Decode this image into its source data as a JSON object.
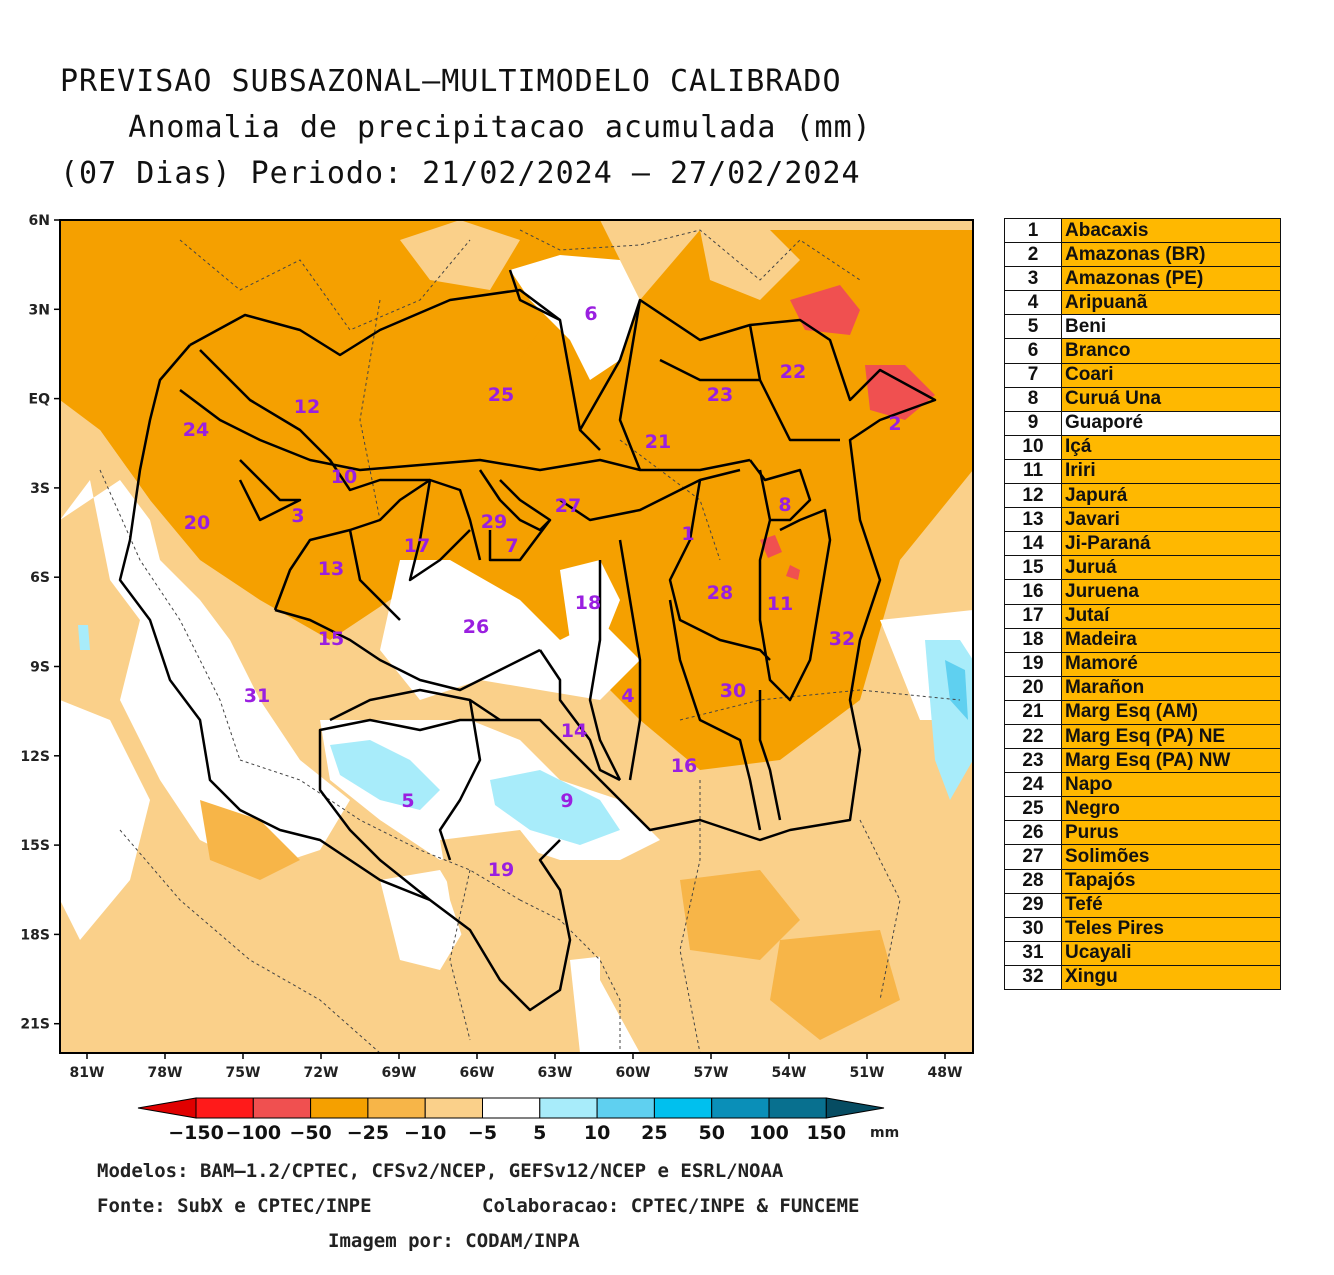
{
  "title": {
    "line1": "PREVISAO SUBSAZONAL—MULTIMODELO CALIBRADO",
    "line2": "Anomalia de precipitacao acumulada (mm)",
    "line3": "(07 Dias) Periodo: 21/02/2024 — 27/02/2024"
  },
  "axes": {
    "y_ticks": [
      "6N",
      "3N",
      "EQ",
      "3S",
      "6S",
      "9S",
      "12S",
      "15S",
      "18S",
      "21S"
    ],
    "x_ticks": [
      "81W",
      "78W",
      "75W",
      "72W",
      "69W",
      "66W",
      "63W",
      "60W",
      "57W",
      "54W",
      "51W",
      "48W"
    ]
  },
  "basin_labels": [
    "6",
    "22",
    "2",
    "23",
    "25",
    "12",
    "24",
    "21",
    "10",
    "3",
    "27",
    "8",
    "20",
    "29",
    "1",
    "7",
    "17",
    "13",
    "28",
    "11",
    "18",
    "32",
    "26",
    "15",
    "4",
    "30",
    "31",
    "14",
    "16",
    "5",
    "9",
    "19"
  ],
  "legend": [
    {
      "num": "1",
      "name": "Abacaxis"
    },
    {
      "num": "2",
      "name": "Amazonas (BR)"
    },
    {
      "num": "3",
      "name": "Amazonas (PE)"
    },
    {
      "num": "4",
      "name": "Aripuanã"
    },
    {
      "num": "5",
      "name": "Beni"
    },
    {
      "num": "6",
      "name": "Branco"
    },
    {
      "num": "7",
      "name": "Coari"
    },
    {
      "num": "8",
      "name": "Curuá Una"
    },
    {
      "num": "9",
      "name": "Guaporé"
    },
    {
      "num": "10",
      "name": "Içá"
    },
    {
      "num": "11",
      "name": "Iriri"
    },
    {
      "num": "12",
      "name": "Japurá"
    },
    {
      "num": "13",
      "name": "Javari"
    },
    {
      "num": "14",
      "name": "Ji-Paraná"
    },
    {
      "num": "15",
      "name": "Juruá"
    },
    {
      "num": "16",
      "name": "Juruena"
    },
    {
      "num": "17",
      "name": "Jutaí"
    },
    {
      "num": "18",
      "name": "Madeira"
    },
    {
      "num": "19",
      "name": "Mamoré"
    },
    {
      "num": "20",
      "name": "Marañon"
    },
    {
      "num": "21",
      "name": "Marg Esq (AM)"
    },
    {
      "num": "22",
      "name": "Marg Esq (PA) NE"
    },
    {
      "num": "23",
      "name": "Marg Esq (PA) NW"
    },
    {
      "num": "24",
      "name": "Napo"
    },
    {
      "num": "25",
      "name": "Negro"
    },
    {
      "num": "26",
      "name": "Purus"
    },
    {
      "num": "27",
      "name": "Solimões"
    },
    {
      "num": "28",
      "name": "Tapajós"
    },
    {
      "num": "29",
      "name": "Tefé"
    },
    {
      "num": "30",
      "name": "Teles Pires"
    },
    {
      "num": "31",
      "name": "Ucayali"
    },
    {
      "num": "32",
      "name": "Xingu"
    }
  ],
  "legend_highlight_white": [
    "5",
    "9"
  ],
  "colorbar": {
    "labels": [
      "−150",
      "−100",
      "−50",
      "−25",
      "−10",
      "−5",
      "5",
      "10",
      "25",
      "50",
      "100",
      "150"
    ],
    "unit": "mm",
    "colors": [
      "#e00000",
      "#ff1a1a",
      "#f05050",
      "#f5a000",
      "#f7b548",
      "#fad08a",
      "#ffffff",
      "#a8ecfa",
      "#5fd0f0",
      "#00c0ee",
      "#0a8fb8",
      "#08708f",
      "#064c62"
    ]
  },
  "footer": {
    "models": "Modelos: BAM—1.2/CPTEC, CFSv2/NCEP, GEFSv12/NCEP e ESRL/NOAA",
    "source": "Fonte: SubX e CPTEC/INPE",
    "collab": "Colaboracao: CPTEC/INPE & FUNCEME",
    "image": "Imagem por: CODAM/INPA"
  }
}
